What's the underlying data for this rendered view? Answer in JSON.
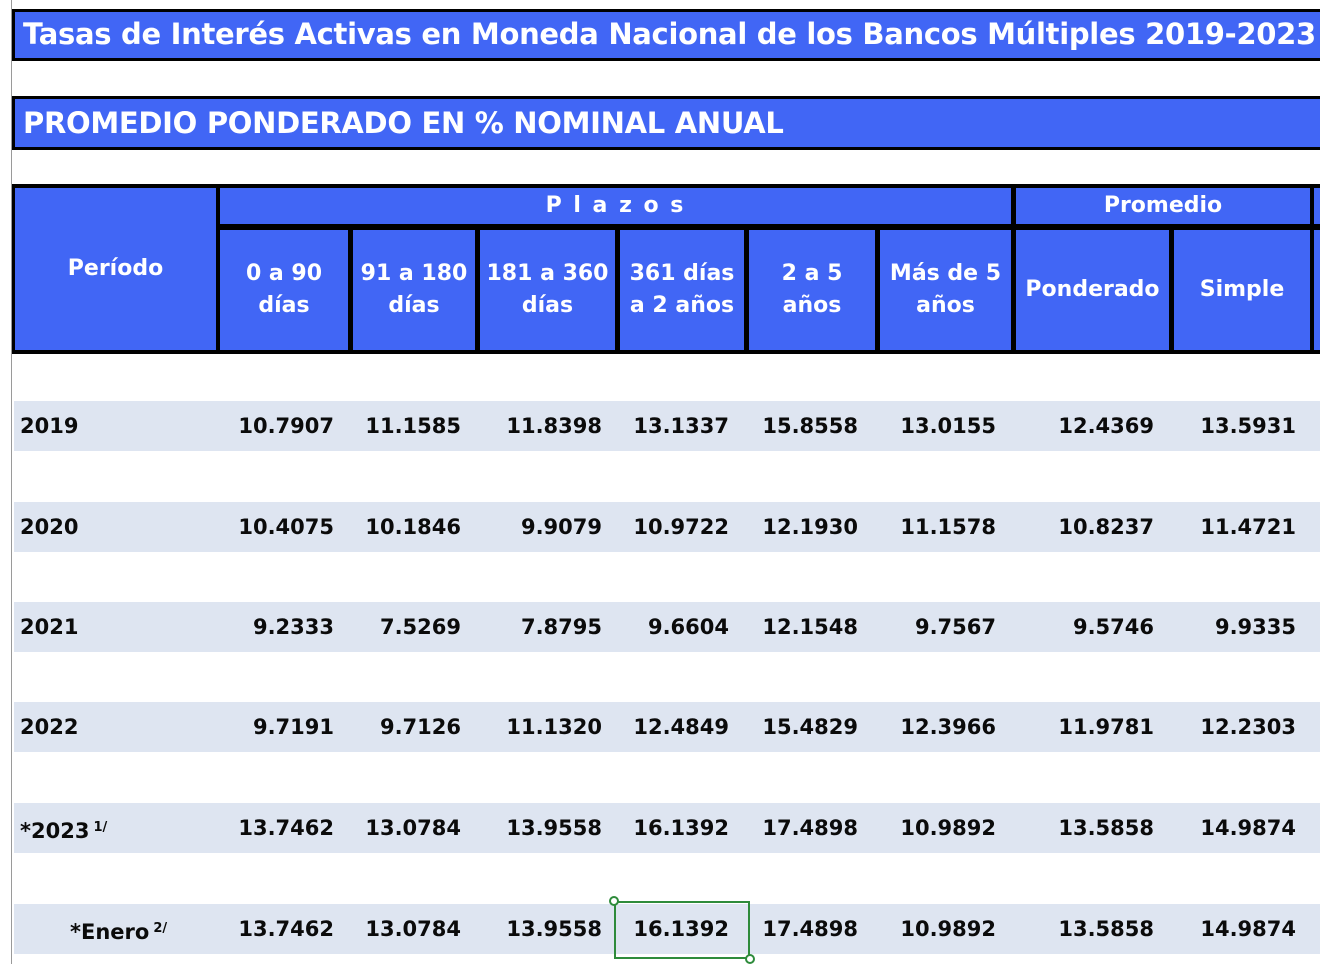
{
  "title": "Tasas de Interés Activas en Moneda Nacional de los Bancos Múltiples 2019-2023",
  "subtitle": "PROMEDIO PONDERADO EN % NOMINAL ANUAL",
  "header": {
    "period": "Período",
    "plazos": "P l a z o s",
    "promedio": "Promedio",
    "cols": [
      "0 a 90 días",
      "91 a 180 días",
      "181 a 360 días",
      "361 días a 2 años",
      "2 a 5 años",
      "Más de 5 años",
      "Ponderado",
      "Simple"
    ]
  },
  "rows": [
    {
      "period": "2019",
      "sup": "",
      "values": [
        "10.7907",
        "11.1585",
        "11.8398",
        "13.1337",
        "15.8558",
        "13.0155",
        "12.4369",
        "13.5931"
      ]
    },
    {
      "period": "2020",
      "sup": "",
      "values": [
        "10.4075",
        "10.1846",
        "9.9079",
        "10.9722",
        "12.1930",
        "11.1578",
        "10.8237",
        "11.4721"
      ]
    },
    {
      "period": "2021",
      "sup": "",
      "values": [
        "9.2333",
        "7.5269",
        "7.8795",
        "9.6604",
        "12.1548",
        "9.7567",
        "9.5746",
        "9.9335"
      ]
    },
    {
      "period": "2022",
      "sup": "",
      "values": [
        "9.7191",
        "9.7126",
        "11.1320",
        "12.4849",
        "15.4829",
        "12.3966",
        "11.9781",
        "12.2303"
      ]
    },
    {
      "period": "*2023",
      "sup": "1/",
      "values": [
        "13.7462",
        "13.0784",
        "13.9558",
        "16.1392",
        "17.4898",
        "10.9892",
        "13.5858",
        "14.9874"
      ]
    },
    {
      "period": "*Enero",
      "sup": "2/",
      "values": [
        "13.7462",
        "13.0784",
        "13.9558",
        "16.1392",
        "17.4898",
        "10.9892",
        "13.5858",
        "14.9874"
      ]
    }
  ],
  "colors": {
    "header_blue": "#4166f5",
    "row_band": "#dee5f1",
    "selection": "#2e8b3b"
  }
}
